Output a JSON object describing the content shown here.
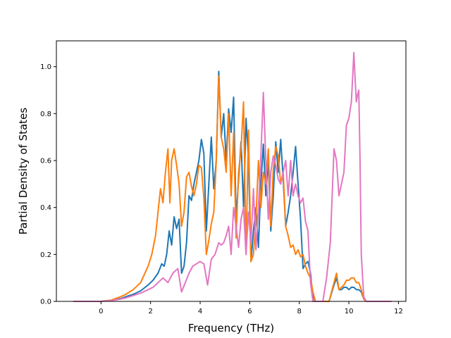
{
  "chart_data": {
    "type": "line",
    "title": "",
    "xlabel": "Frequency (THz)",
    "ylabel": "Partial Density of States",
    "xlim": [
      -1.8,
      12.3
    ],
    "ylim": [
      0,
      1.11
    ],
    "xticks": [
      0,
      2,
      4,
      6,
      8,
      10,
      12
    ],
    "yticks": [
      0.0,
      0.2,
      0.4,
      0.6,
      0.8,
      1.0
    ],
    "xtick_labels": [
      "0",
      "2",
      "4",
      "6",
      "8",
      "10",
      "12"
    ],
    "ytick_labels": [
      "0.0",
      "0.2",
      "0.4",
      "0.6",
      "0.8",
      "1.0"
    ],
    "grid": false,
    "legend": "none",
    "series": [
      {
        "color": "#1f77b4",
        "x": [
          -1.1,
          0.0,
          0.4,
          0.8,
          1.0,
          1.3,
          1.6,
          1.9,
          2.1,
          2.3,
          2.45,
          2.55,
          2.65,
          2.75,
          2.85,
          2.95,
          3.05,
          3.15,
          3.25,
          3.35,
          3.45,
          3.55,
          3.65,
          3.75,
          3.85,
          3.95,
          4.05,
          4.15,
          4.25,
          4.35,
          4.45,
          4.55,
          4.65,
          4.75,
          4.85,
          4.95,
          5.05,
          5.15,
          5.25,
          5.35,
          5.45,
          5.55,
          5.65,
          5.75,
          5.85,
          5.95,
          6.05,
          6.15,
          6.25,
          6.35,
          6.45,
          6.55,
          6.65,
          6.75,
          6.85,
          6.95,
          7.05,
          7.15,
          7.25,
          7.35,
          7.45,
          7.55,
          7.65,
          7.75,
          7.85,
          7.95,
          8.05,
          8.15,
          8.25,
          8.35,
          8.45,
          8.55,
          8.65,
          8.8,
          9.0,
          9.2,
          9.4,
          9.5,
          9.6,
          9.7,
          9.8,
          9.9,
          10.0,
          10.1,
          10.2,
          10.3,
          10.4,
          10.5,
          10.6,
          10.7,
          11.0,
          11.7
        ],
        "values": [
          0.0,
          0.0,
          0.005,
          0.012,
          0.02,
          0.03,
          0.045,
          0.07,
          0.09,
          0.12,
          0.16,
          0.15,
          0.2,
          0.3,
          0.24,
          0.36,
          0.31,
          0.35,
          0.12,
          0.15,
          0.25,
          0.45,
          0.43,
          0.5,
          0.55,
          0.6,
          0.69,
          0.63,
          0.3,
          0.5,
          0.7,
          0.48,
          0.6,
          0.98,
          0.7,
          0.8,
          0.6,
          0.82,
          0.72,
          0.87,
          0.35,
          0.52,
          0.68,
          0.4,
          0.78,
          0.6,
          0.17,
          0.3,
          0.4,
          0.23,
          0.5,
          0.67,
          0.45,
          0.6,
          0.3,
          0.45,
          0.68,
          0.55,
          0.69,
          0.52,
          0.32,
          0.38,
          0.45,
          0.55,
          0.66,
          0.5,
          0.35,
          0.14,
          0.16,
          0.17,
          0.12,
          0.02,
          0.0,
          0.0,
          0.0,
          0.0,
          0.07,
          0.1,
          0.05,
          0.05,
          0.06,
          0.06,
          0.05,
          0.06,
          0.06,
          0.05,
          0.05,
          0.04,
          0.01,
          0.0,
          0.0,
          0.0
        ]
      },
      {
        "color": "#ff7f0e",
        "x": [
          -1.1,
          0.0,
          0.4,
          0.8,
          1.0,
          1.3,
          1.6,
          1.9,
          2.05,
          2.2,
          2.3,
          2.4,
          2.5,
          2.6,
          2.7,
          2.78,
          2.85,
          2.95,
          3.05,
          3.15,
          3.25,
          3.35,
          3.45,
          3.55,
          3.65,
          3.75,
          3.85,
          3.95,
          4.05,
          4.15,
          4.25,
          4.35,
          4.45,
          4.55,
          4.65,
          4.75,
          4.85,
          4.95,
          5.05,
          5.15,
          5.25,
          5.35,
          5.45,
          5.55,
          5.65,
          5.75,
          5.85,
          5.95,
          6.05,
          6.15,
          6.25,
          6.35,
          6.45,
          6.55,
          6.65,
          6.75,
          6.85,
          6.95,
          7.05,
          7.15,
          7.25,
          7.35,
          7.45,
          7.55,
          7.65,
          7.75,
          7.85,
          7.95,
          8.05,
          8.15,
          8.25,
          8.35,
          8.45,
          8.55,
          8.65,
          8.8,
          9.0,
          9.2,
          9.4,
          9.5,
          9.6,
          9.7,
          9.8,
          9.9,
          10.0,
          10.1,
          10.2,
          10.3,
          10.4,
          10.5,
          10.6,
          10.7,
          11.0,
          11.7
        ],
        "values": [
          0.0,
          0.0,
          0.005,
          0.02,
          0.03,
          0.05,
          0.08,
          0.15,
          0.2,
          0.28,
          0.38,
          0.48,
          0.42,
          0.55,
          0.65,
          0.42,
          0.6,
          0.65,
          0.58,
          0.5,
          0.32,
          0.38,
          0.53,
          0.55,
          0.49,
          0.45,
          0.5,
          0.58,
          0.57,
          0.44,
          0.2,
          0.26,
          0.33,
          0.38,
          0.6,
          0.96,
          0.7,
          0.65,
          0.55,
          0.8,
          0.45,
          0.72,
          0.27,
          0.55,
          0.65,
          0.85,
          0.2,
          0.73,
          0.17,
          0.2,
          0.35,
          0.6,
          0.4,
          0.55,
          0.5,
          0.65,
          0.32,
          0.56,
          0.66,
          0.62,
          0.5,
          0.55,
          0.32,
          0.28,
          0.23,
          0.24,
          0.2,
          0.22,
          0.19,
          0.2,
          0.15,
          0.12,
          0.1,
          0.04,
          0.0,
          0.0,
          0.0,
          0.0,
          0.08,
          0.12,
          0.05,
          0.06,
          0.07,
          0.09,
          0.09,
          0.1,
          0.1,
          0.08,
          0.08,
          0.05,
          0.01,
          0.0,
          0.0,
          0.0
        ]
      },
      {
        "color": "#e377c2",
        "x": [
          -1.1,
          0.0,
          0.4,
          0.8,
          1.0,
          1.3,
          1.6,
          1.9,
          2.1,
          2.3,
          2.5,
          2.7,
          2.9,
          3.1,
          3.25,
          3.4,
          3.55,
          3.7,
          3.85,
          4.0,
          4.15,
          4.3,
          4.45,
          4.6,
          4.75,
          4.85,
          4.95,
          5.05,
          5.15,
          5.25,
          5.35,
          5.45,
          5.55,
          5.65,
          5.75,
          5.85,
          5.95,
          6.05,
          6.15,
          6.25,
          6.35,
          6.45,
          6.55,
          6.65,
          6.75,
          6.85,
          6.95,
          7.05,
          7.15,
          7.25,
          7.35,
          7.45,
          7.55,
          7.65,
          7.75,
          7.85,
          7.95,
          8.05,
          8.15,
          8.25,
          8.35,
          8.45,
          8.55,
          8.65,
          8.8,
          8.95,
          9.1,
          9.25,
          9.4,
          9.5,
          9.6,
          9.7,
          9.8,
          9.9,
          10.0,
          10.1,
          10.15,
          10.2,
          10.25,
          10.3,
          10.35,
          10.4,
          10.45,
          10.5,
          10.6,
          10.7,
          11.0,
          11.7
        ],
        "values": [
          0.0,
          0.0,
          0.003,
          0.01,
          0.015,
          0.025,
          0.035,
          0.05,
          0.06,
          0.08,
          0.1,
          0.08,
          0.12,
          0.14,
          0.04,
          0.08,
          0.12,
          0.15,
          0.16,
          0.17,
          0.16,
          0.07,
          0.18,
          0.2,
          0.25,
          0.24,
          0.25,
          0.28,
          0.32,
          0.2,
          0.4,
          0.32,
          0.23,
          0.35,
          0.4,
          0.2,
          0.38,
          0.25,
          0.48,
          0.22,
          0.4,
          0.62,
          0.89,
          0.6,
          0.35,
          0.55,
          0.62,
          0.58,
          0.52,
          0.5,
          0.55,
          0.6,
          0.45,
          0.6,
          0.45,
          0.5,
          0.45,
          0.42,
          0.44,
          0.34,
          0.3,
          0.08,
          0.0,
          0.0,
          0.0,
          0.0,
          0.1,
          0.25,
          0.65,
          0.6,
          0.45,
          0.5,
          0.55,
          0.75,
          0.78,
          0.85,
          0.95,
          1.06,
          0.95,
          0.85,
          0.88,
          0.9,
          0.6,
          0.2,
          0.02,
          0.0,
          0.0,
          0.0
        ]
      }
    ]
  }
}
